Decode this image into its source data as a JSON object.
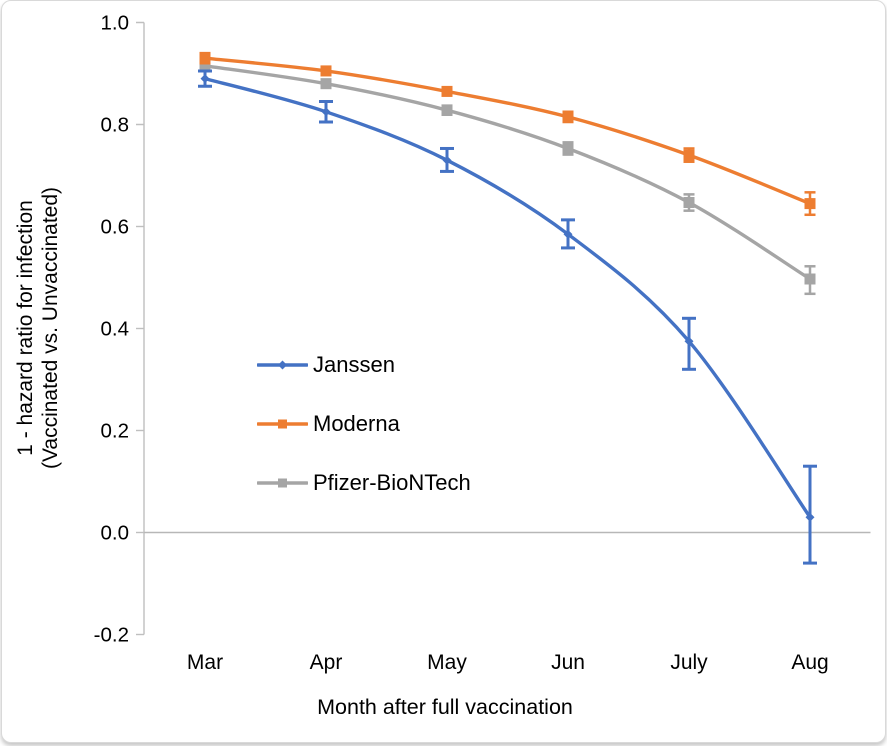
{
  "frame": {
    "background": "#ffffff",
    "border_color": "#d9d9d9"
  },
  "chart_data": {
    "type": "line",
    "title": "",
    "xlabel": "Month after full vaccination",
    "ylabel_line1": "1 - hazard ratio for infection",
    "ylabel_line2": "(Vaccinated vs. Unvaccinated)",
    "categories": [
      "Mar",
      "Apr",
      "May",
      "Jun",
      "July",
      "Aug"
    ],
    "ylim": [
      -0.2,
      1.0
    ],
    "y_ticks": [
      1.0,
      0.8,
      0.6,
      0.4,
      0.2,
      0.0,
      -0.2
    ],
    "y_tick_labels": [
      "1.0",
      "0.8",
      "0.6",
      "0.4",
      "0.2",
      "0.0",
      "-0.2"
    ],
    "grid": "zero-line-only",
    "legend_position": "inside-left-middle",
    "axis_color": "#bfbfbf",
    "text_color": "#000000",
    "series": [
      {
        "name": "Janssen",
        "color": "#4472C4",
        "marker": "diamond",
        "values": [
          0.89,
          0.825,
          0.73,
          0.585,
          0.375,
          0.03
        ],
        "ci_low": [
          0.875,
          0.805,
          0.708,
          0.558,
          0.32,
          -0.06
        ],
        "ci_high": [
          0.905,
          0.845,
          0.753,
          0.613,
          0.42,
          0.13
        ]
      },
      {
        "name": "Moderna",
        "color": "#ED7D31",
        "marker": "square",
        "values": [
          0.93,
          0.905,
          0.865,
          0.815,
          0.74,
          0.645
        ],
        "ci_low": [
          0.92,
          0.897,
          0.857,
          0.805,
          0.727,
          0.623
        ],
        "ci_high": [
          0.94,
          0.912,
          0.873,
          0.825,
          0.753,
          0.667
        ]
      },
      {
        "name": "Pfizer-BioNTech",
        "color": "#A5A5A5",
        "marker": "square",
        "values": [
          0.915,
          0.88,
          0.828,
          0.753,
          0.647,
          0.497
        ],
        "ci_low": [
          0.907,
          0.872,
          0.819,
          0.741,
          0.631,
          0.468
        ],
        "ci_high": [
          0.923,
          0.888,
          0.837,
          0.765,
          0.663,
          0.522
        ]
      }
    ]
  }
}
